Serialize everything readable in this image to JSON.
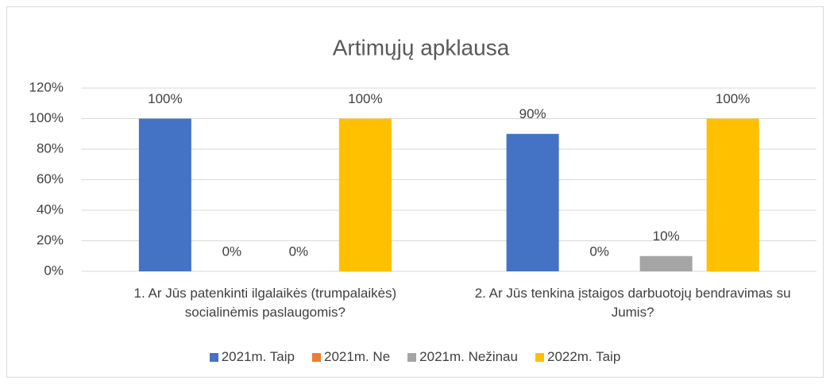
{
  "chart_data": {
    "type": "bar",
    "title": "Artimųjų apklausa",
    "categories": [
      "1. Ar Jūs patenkinti ilgalaikės (trumpalaikės) socialinėmis paslaugomis?",
      "2. Ar Jūs tenkina įstaigos darbuotojų bendravimas su Jumis?"
    ],
    "series": [
      {
        "name": "2021m. Taip",
        "color": "#4472c4",
        "values": [
          100,
          90
        ],
        "value_labels": [
          "100%",
          "90%"
        ]
      },
      {
        "name": "2021m. Ne",
        "color": "#ed7d31",
        "values": [
          0,
          0
        ],
        "value_labels": [
          "0%",
          "0%"
        ]
      },
      {
        "name": "2021m. Nežinau",
        "color": "#a5a5a5",
        "values": [
          0,
          10
        ],
        "value_labels": [
          "0%",
          "10%"
        ]
      },
      {
        "name": "2022m. Taip",
        "color": "#ffc000",
        "values": [
          100,
          100
        ],
        "value_labels": [
          "100%",
          "100%"
        ]
      }
    ],
    "ylim": [
      0,
      120
    ],
    "yticks": [
      {
        "value": 0,
        "label": "0%"
      },
      {
        "value": 20,
        "label": "20%"
      },
      {
        "value": 40,
        "label": "40%"
      },
      {
        "value": 60,
        "label": "60%"
      },
      {
        "value": 80,
        "label": "80%"
      },
      {
        "value": 100,
        "label": "100%"
      },
      {
        "value": 120,
        "label": "120%"
      }
    ],
    "grid": true,
    "legend": "bottom"
  }
}
